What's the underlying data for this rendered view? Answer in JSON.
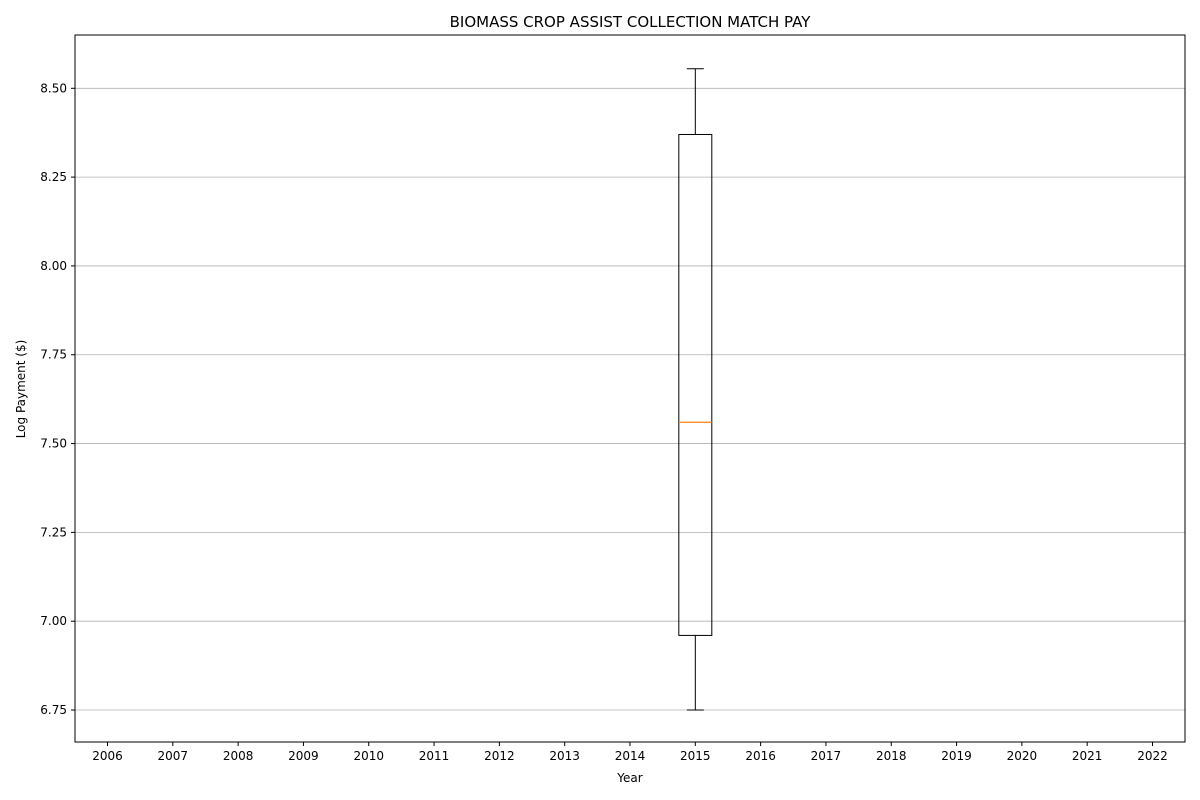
{
  "chart_data": {
    "type": "box",
    "title": "BIOMASS CROP ASSIST COLLECTION MATCH PAY",
    "xlabel": "Year",
    "ylabel": "Log Payment ($)",
    "categories": [
      "2006",
      "2007",
      "2008",
      "2009",
      "2010",
      "2011",
      "2012",
      "2013",
      "2014",
      "2015",
      "2016",
      "2017",
      "2018",
      "2019",
      "2020",
      "2021",
      "2022"
    ],
    "ylim": [
      6.66,
      8.65
    ],
    "yticks": [
      6.75,
      7.0,
      7.25,
      7.5,
      7.75,
      8.0,
      8.25,
      8.5
    ],
    "ytick_labels": [
      "6.75",
      "7.00",
      "7.25",
      "7.50",
      "7.75",
      "8.00",
      "8.25",
      "8.50"
    ],
    "grid": "y",
    "boxes": [
      {
        "category": "2015",
        "whisker_low": 6.75,
        "q1": 6.96,
        "median": 7.56,
        "q3": 8.37,
        "whisker_high": 8.555
      }
    ],
    "colors": {
      "box": "#000000",
      "median": "#ff7f0e",
      "grid": "#b0b0b0"
    }
  }
}
